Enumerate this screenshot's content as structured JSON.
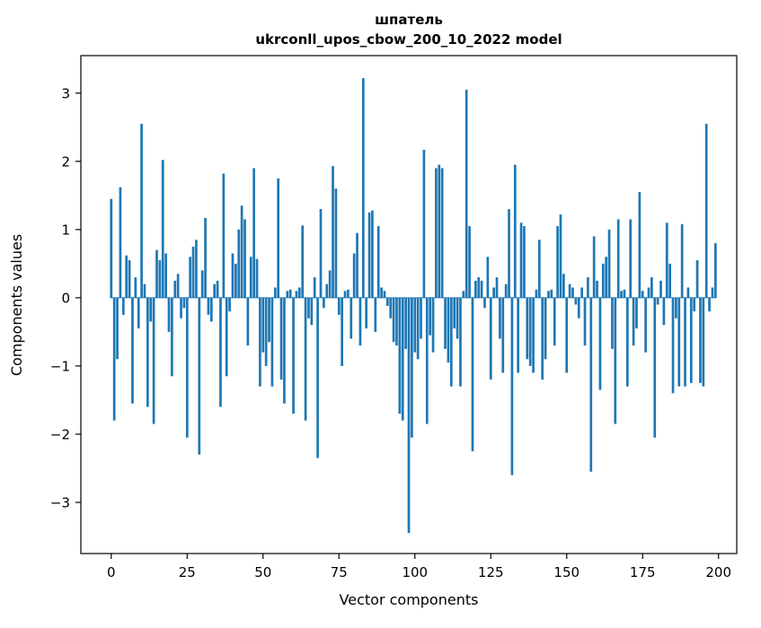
{
  "chart_data": {
    "type": "bar",
    "title": "шпатель",
    "subtitle": "ukrconll_upos_cbow_200_10_2022 model",
    "xlabel": "Vector components",
    "ylabel": "Components values",
    "bar_color": "#1f77b4",
    "background_color": "#ffffff",
    "xlim": [
      -10,
      206
    ],
    "ylim": [
      -3.75,
      3.55
    ],
    "x_ticks": [
      0,
      25,
      50,
      75,
      100,
      125,
      150,
      175,
      200
    ],
    "y_ticks": [
      -3,
      -2,
      -1,
      0,
      1,
      2,
      3
    ],
    "grid": false,
    "legend": "none",
    "bar_width": 0.8,
    "values": [
      1.45,
      -1.8,
      -0.9,
      1.62,
      -0.25,
      0.62,
      0.55,
      -1.55,
      0.3,
      -0.45,
      2.55,
      0.2,
      -1.6,
      -0.35,
      -1.85,
      0.7,
      0.55,
      2.02,
      0.65,
      -0.5,
      -1.15,
      0.25,
      0.35,
      -0.3,
      -0.15,
      -2.05,
      0.6,
      0.75,
      0.85,
      -2.3,
      0.4,
      1.17,
      -0.25,
      -0.35,
      0.2,
      0.25,
      -1.6,
      1.82,
      -1.15,
      -0.2,
      0.65,
      0.5,
      1.0,
      1.35,
      1.15,
      -0.7,
      0.6,
      1.9,
      0.57,
      -1.3,
      -0.8,
      -1.0,
      -0.65,
      -1.3,
      0.15,
      1.75,
      -1.2,
      -1.55,
      0.1,
      0.12,
      -1.7,
      0.1,
      0.15,
      1.06,
      -1.8,
      -0.3,
      -0.4,
      0.3,
      -2.35,
      1.3,
      -0.15,
      0.2,
      0.4,
      1.93,
      1.6,
      -0.25,
      -1.0,
      0.1,
      0.12,
      -0.6,
      0.65,
      0.95,
      -0.7,
      3.22,
      -0.45,
      1.25,
      1.28,
      -0.5,
      1.05,
      0.15,
      0.1,
      -0.12,
      -0.3,
      -0.65,
      -0.7,
      -1.7,
      -1.8,
      -0.75,
      -3.45,
      -2.05,
      -0.8,
      -0.9,
      -0.6,
      2.17,
      -1.85,
      -0.55,
      -0.8,
      1.9,
      1.95,
      1.9,
      -0.75,
      -0.95,
      -1.3,
      -0.45,
      -0.6,
      -1.3,
      0.1,
      3.05,
      1.05,
      -2.25,
      0.25,
      0.3,
      0.25,
      -0.15,
      0.6,
      -1.2,
      0.15,
      0.3,
      -0.6,
      -1.1,
      0.2,
      1.3,
      -2.6,
      1.95,
      -1.1,
      1.1,
      1.05,
      -0.9,
      -1.0,
      -1.1,
      0.12,
      0.85,
      -1.2,
      -0.9,
      0.1,
      0.12,
      -0.7,
      1.05,
      1.22,
      0.35,
      -1.1,
      0.2,
      0.15,
      -0.1,
      -0.3,
      0.15,
      -0.7,
      0.3,
      -2.55,
      0.9,
      0.25,
      -1.35,
      0.5,
      0.6,
      1.0,
      -0.75,
      -1.85,
      1.15,
      0.1,
      0.12,
      -1.3,
      1.15,
      -0.7,
      -0.45,
      1.55,
      0.1,
      -0.8,
      0.15,
      0.3,
      -2.05,
      -0.1,
      0.25,
      -0.4,
      1.1,
      0.5,
      -1.4,
      -0.3,
      -1.3,
      1.08,
      -1.3,
      0.15,
      -1.25,
      -0.2,
      0.55,
      -1.25,
      -1.3,
      2.55,
      -0.2,
      0.15,
      0.8
    ]
  }
}
